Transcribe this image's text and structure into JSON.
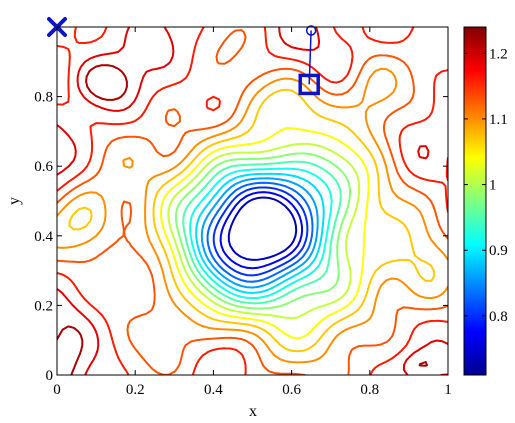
{
  "chart_data": {
    "type": "contour",
    "xlabel": "x",
    "ylabel": "y",
    "xlim": [
      0,
      1
    ],
    "ylim": [
      0,
      1
    ],
    "x_ticks": [
      0,
      0.2,
      0.4,
      0.6,
      0.8,
      1
    ],
    "x_tick_labels": [
      "0",
      "0.2",
      "0.4",
      "0.6",
      "0.8",
      "1"
    ],
    "y_ticks": [
      0,
      0.2,
      0.4,
      0.6,
      0.8
    ],
    "y_tick_labels": [
      "0",
      "0.2",
      "0.4",
      "0.6",
      "0.8"
    ],
    "colormap": "jet",
    "colorbar": {
      "range": [
        0.71,
        1.24
      ],
      "ticks": [
        0.8,
        0.9,
        1,
        1.1,
        1.2
      ],
      "tick_labels": [
        "0.8",
        "0.9",
        "1",
        "1.1",
        "1.2"
      ]
    },
    "contour_levels": [
      0.74,
      0.77,
      0.8,
      0.83,
      0.86,
      0.89,
      0.92,
      0.95,
      0.98,
      1.01,
      1.04,
      1.07,
      1.1,
      1.13,
      1.16,
      1.19,
      1.22
    ],
    "field_minimum": {
      "x": 0.52,
      "y": 0.45,
      "value": 0.71
    },
    "markers": [
      {
        "name": "start",
        "shape": "x",
        "x": 0.0,
        "y": 1.0,
        "color": "#0a14c8"
      },
      {
        "name": "circle",
        "shape": "circle",
        "x": 0.65,
        "y": 0.99,
        "color": "#0a14c8"
      },
      {
        "name": "square",
        "shape": "square",
        "x": 0.645,
        "y": 0.835,
        "color": "#0a14c8"
      }
    ],
    "path": [
      {
        "x": 0.65,
        "y": 0.99
      },
      {
        "x": 0.645,
        "y": 0.835
      }
    ]
  }
}
